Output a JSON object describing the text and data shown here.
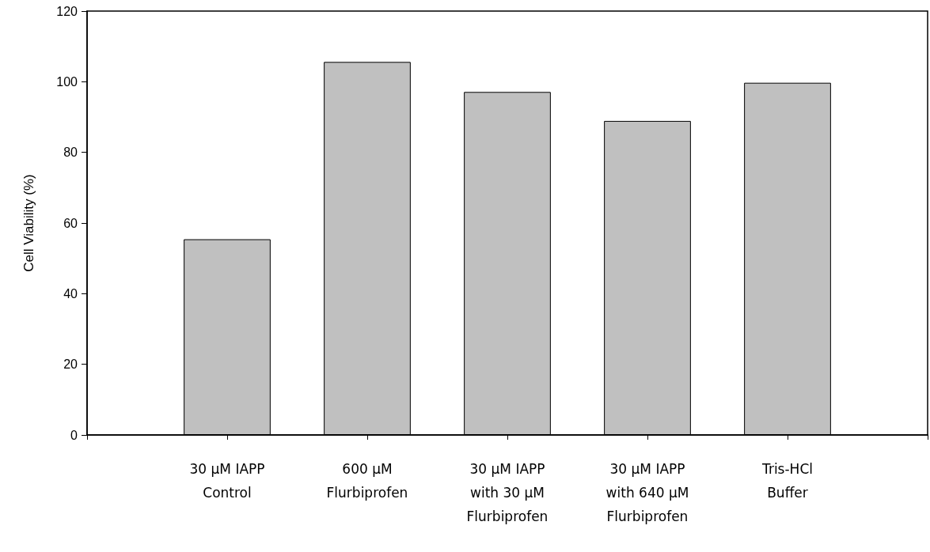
{
  "chart_data": {
    "type": "bar",
    "ylabel": "Cell Viability (%)",
    "categories": [
      "30 μM IAPP\nControl",
      "600 μM\nFlurbiprofen",
      "30 μM IAPP\nwith 30 μM\nFlurbiprofen",
      "30 μM IAPP\nwith 640 μM\nFlurbiprofen",
      "Tris-HCl\nBuffer"
    ],
    "values": [
      55.4,
      105.6,
      97.1,
      88.9,
      99.7
    ],
    "color": "#c0c0c0",
    "ylim": [
      0,
      120
    ],
    "yticks": [
      0,
      20,
      40,
      60,
      80,
      100,
      120
    ],
    "grid": false
  }
}
